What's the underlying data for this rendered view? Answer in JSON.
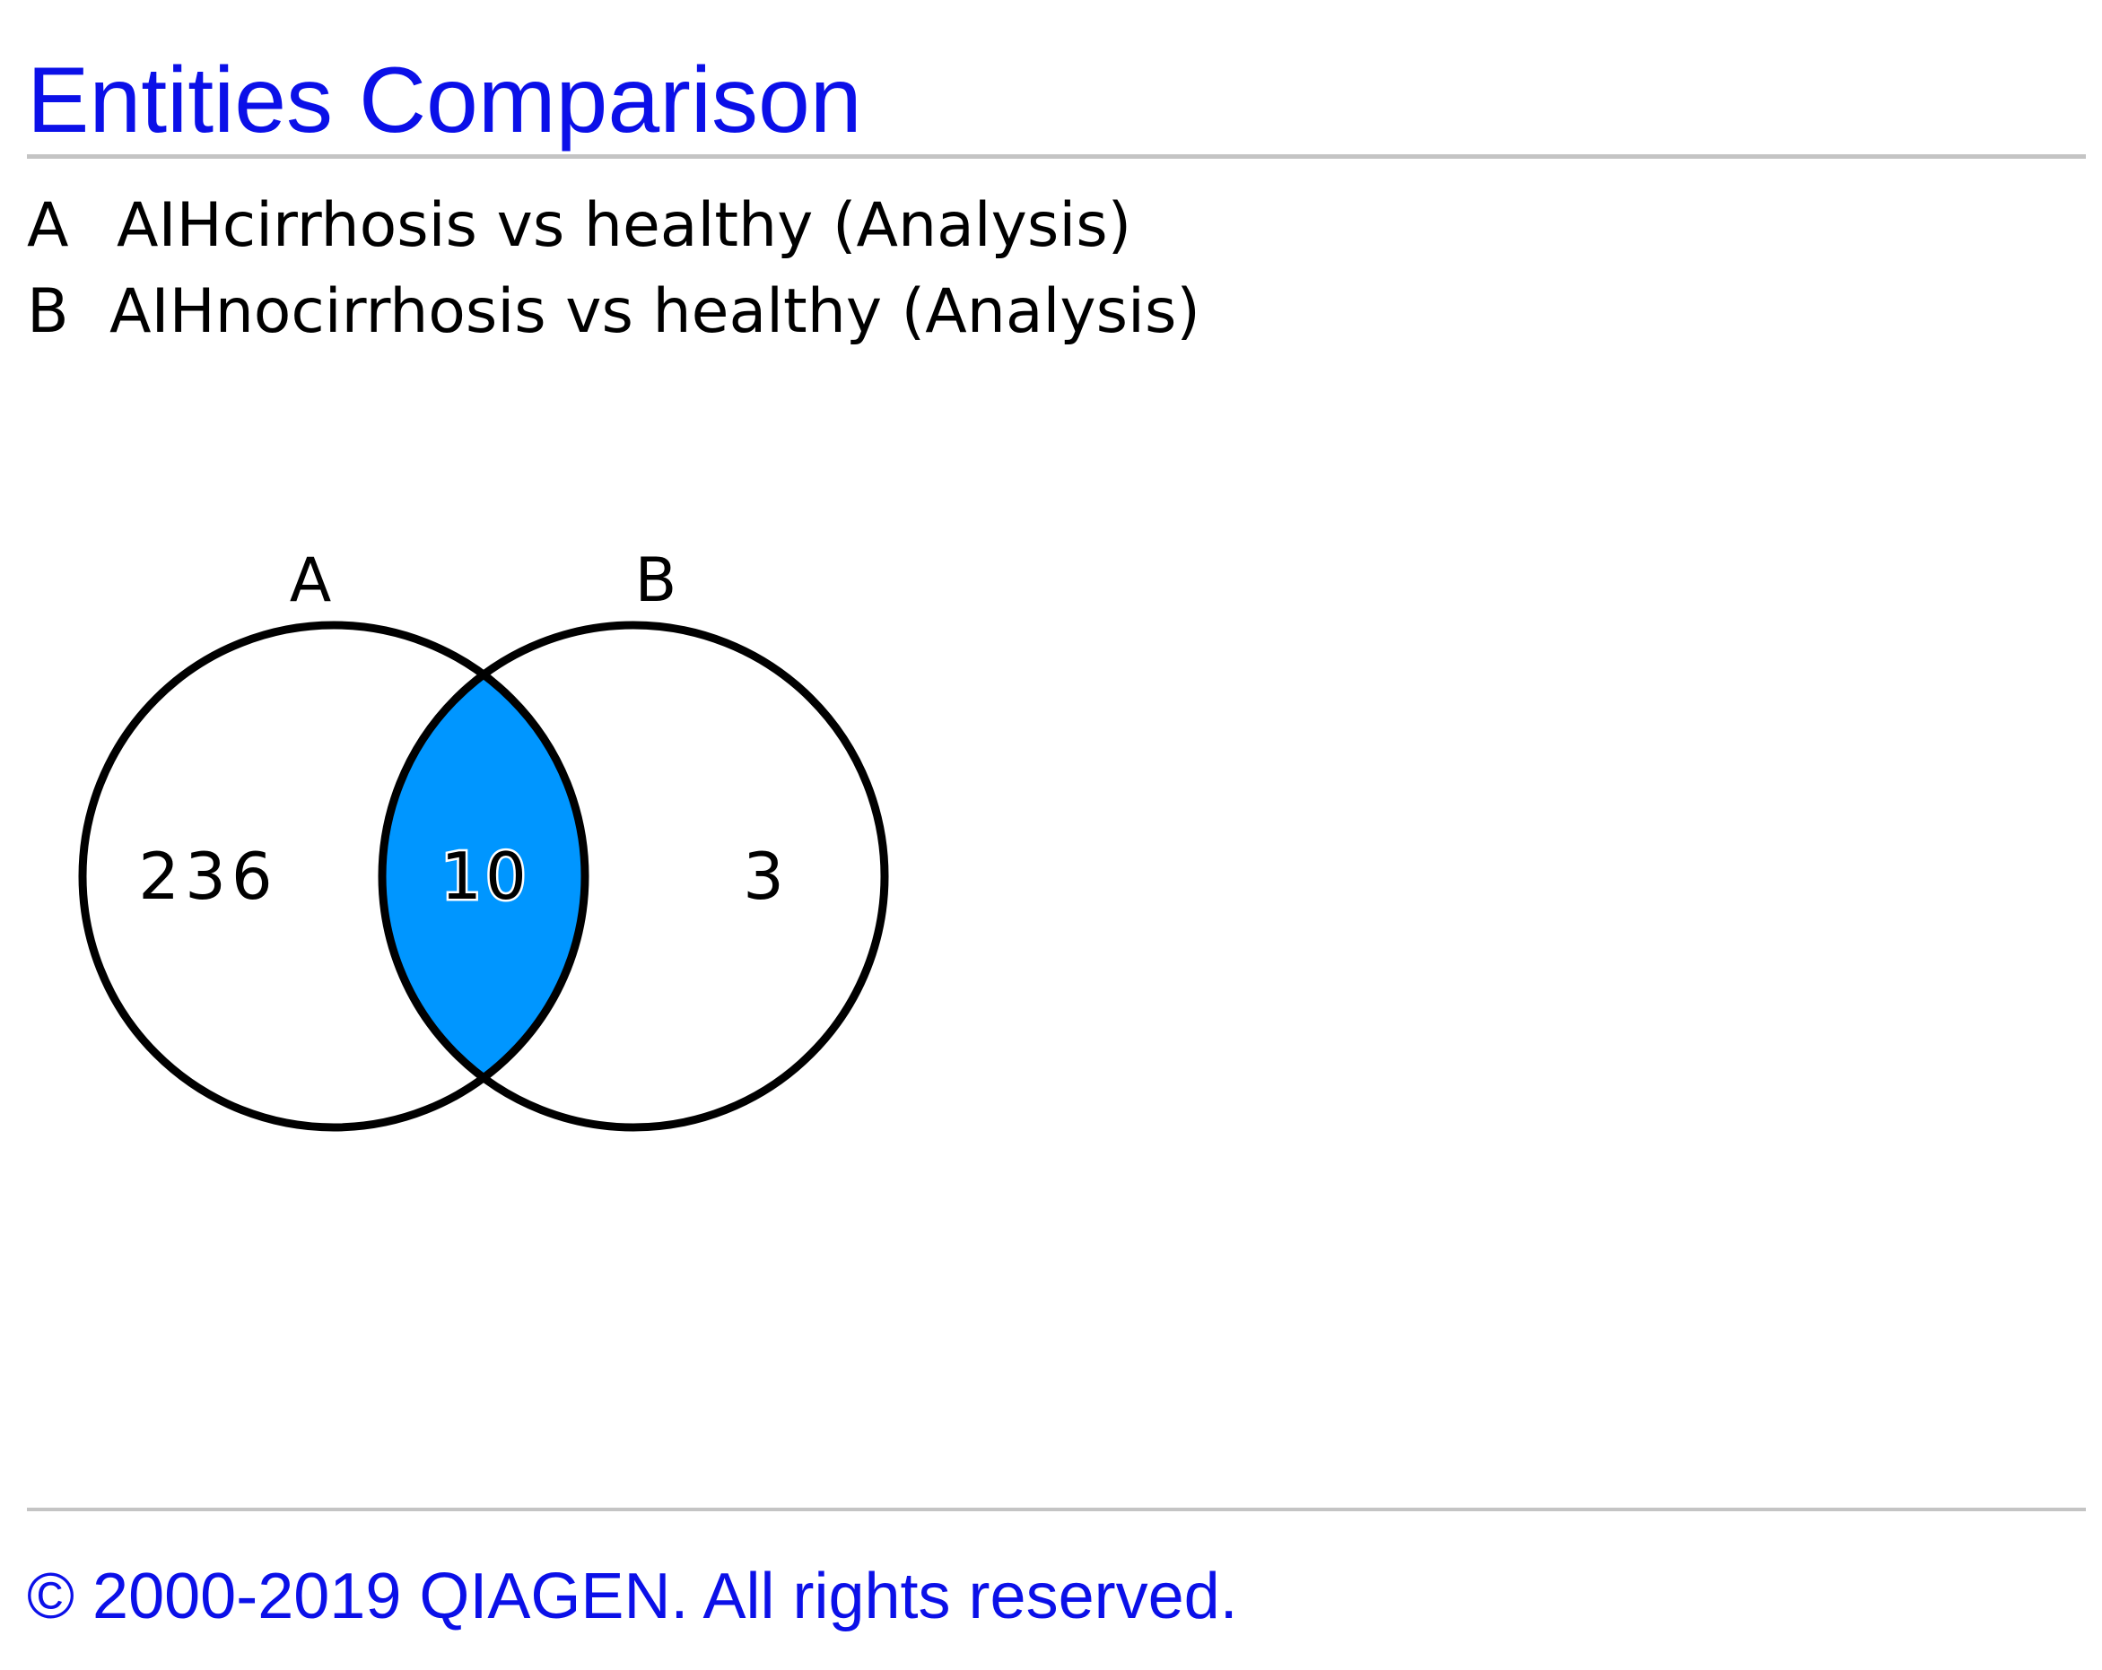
{
  "title": "Entities Comparison",
  "legend": [
    {
      "key": "A",
      "label": "AIHcirrhosis vs healthy (Analysis)"
    },
    {
      "key": "B",
      "label": "AIHnocirrhosis vs healthy (Analysis)"
    }
  ],
  "venn": {
    "set_a_label": "A",
    "set_b_label": "B",
    "only_a": "236",
    "intersection": "10",
    "only_b": "3",
    "intersection_color": "#0096ff",
    "outline_color": "#000000"
  },
  "footer": "© 2000-2019 QIAGEN. All rights reserved."
}
